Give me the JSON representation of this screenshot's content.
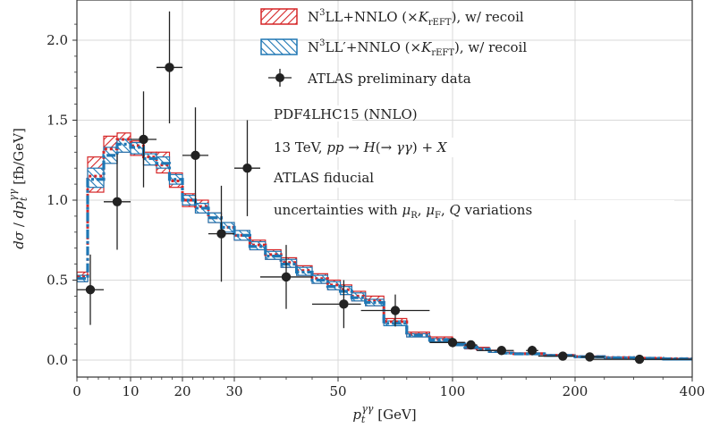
{
  "chart_data": {
    "type": "line",
    "xlabel": "p_t^γγ [GeV]",
    "ylabel": "dσ/dp_t^γγ [fb/GeV]",
    "x_scale": "piecewise-linear (0–50: 2 per GeV unit segment, 50–400 compressed)",
    "x_ticks": [
      0,
      10,
      20,
      30,
      50,
      100,
      200,
      400
    ],
    "x_tick_labels": [
      "0",
      "10",
      "20",
      "30",
      "50",
      "100",
      "200",
      "400"
    ],
    "y_ticks": [
      0.0,
      0.5,
      1.0,
      1.5,
      2.0
    ],
    "y_tick_labels": [
      "0.0",
      "0.5",
      "1.0",
      "1.5",
      "2.0"
    ],
    "ylim": [
      -0.08,
      2.22
    ],
    "grid": true,
    "legend_placement": "top-right",
    "legend": [
      {
        "label": "N³LL+NNLO (×K_rEFT), w/ recoil",
        "color": "#d62728",
        "style": "hatched band"
      },
      {
        "label": "N³LL′+NNLO (×K_rEFT), w/ recoil",
        "color": "#1f77b4",
        "style": "hatched band"
      },
      {
        "label": "ATLAS preliminary data",
        "color": "#222222",
        "style": "points with error bars"
      }
    ],
    "annotations": [
      "PDF4LHC15 (NNLO)",
      "13 TeV, pp → H(→ γγ) + X",
      "ATLAS fiducial",
      "uncertainties with μ_R, μ_F, Q variations"
    ],
    "bin_edges": [
      0,
      2,
      5,
      7.5,
      10,
      12.5,
      15,
      17.5,
      20,
      22.5,
      25,
      27.5,
      30,
      33,
      36,
      39,
      42,
      45,
      48,
      51,
      56,
      62,
      70,
      80,
      90,
      100,
      110,
      120,
      130,
      140,
      150,
      175,
      200,
      250,
      300,
      350,
      400
    ],
    "series": [
      {
        "name": "N³LL+NNLO (×K_rEFT), w/ recoil",
        "color": "#d62728",
        "central": [
          0.52,
          1.15,
          1.32,
          1.38,
          1.34,
          1.27,
          1.22,
          1.12,
          1.0,
          0.96,
          0.89,
          0.83,
          0.78,
          0.72,
          0.66,
          0.61,
          0.56,
          0.51,
          0.47,
          0.44,
          0.4,
          0.37,
          0.24,
          0.16,
          0.13,
          0.1,
          0.08,
          0.07,
          0.055,
          0.045,
          0.04,
          0.03,
          0.022,
          0.016,
          0.012,
          0.009
        ],
        "low": [
          0.49,
          1.05,
          1.23,
          1.3,
          1.28,
          1.22,
          1.17,
          1.08,
          0.96,
          0.92,
          0.86,
          0.8,
          0.75,
          0.69,
          0.63,
          0.58,
          0.53,
          0.48,
          0.44,
          0.41,
          0.37,
          0.34,
          0.22,
          0.145,
          0.115,
          0.09,
          0.07,
          0.06,
          0.048,
          0.04,
          0.035,
          0.026,
          0.018,
          0.013,
          0.01,
          0.007
        ],
        "high": [
          0.55,
          1.27,
          1.4,
          1.42,
          1.37,
          1.3,
          1.3,
          1.17,
          1.04,
          1.0,
          0.92,
          0.86,
          0.81,
          0.75,
          0.69,
          0.64,
          0.59,
          0.54,
          0.5,
          0.47,
          0.43,
          0.4,
          0.26,
          0.175,
          0.145,
          0.11,
          0.09,
          0.08,
          0.062,
          0.05,
          0.045,
          0.034,
          0.026,
          0.019,
          0.014,
          0.011
        ]
      },
      {
        "name": "N³LL′+NNLO (×K_rEFT), w/ recoil",
        "color": "#1f77b4",
        "central": [
          0.51,
          1.13,
          1.28,
          1.35,
          1.33,
          1.26,
          1.23,
          1.13,
          1.0,
          0.95,
          0.89,
          0.83,
          0.78,
          0.71,
          0.65,
          0.6,
          0.55,
          0.5,
          0.46,
          0.43,
          0.39,
          0.36,
          0.23,
          0.155,
          0.125,
          0.1,
          0.08,
          0.068,
          0.054,
          0.044,
          0.039,
          0.029,
          0.021,
          0.015,
          0.011,
          0.008
        ],
        "low": [
          0.49,
          1.08,
          1.23,
          1.3,
          1.29,
          1.22,
          1.2,
          1.1,
          0.97,
          0.92,
          0.86,
          0.8,
          0.75,
          0.69,
          0.63,
          0.58,
          0.53,
          0.48,
          0.44,
          0.41,
          0.37,
          0.34,
          0.215,
          0.145,
          0.115,
          0.09,
          0.072,
          0.06,
          0.048,
          0.04,
          0.035,
          0.026,
          0.018,
          0.013,
          0.01,
          0.007
        ],
        "high": [
          0.53,
          1.2,
          1.33,
          1.38,
          1.36,
          1.29,
          1.27,
          1.16,
          1.03,
          0.98,
          0.92,
          0.86,
          0.81,
          0.74,
          0.68,
          0.63,
          0.58,
          0.53,
          0.49,
          0.46,
          0.42,
          0.38,
          0.245,
          0.165,
          0.135,
          0.11,
          0.088,
          0.075,
          0.06,
          0.048,
          0.043,
          0.032,
          0.024,
          0.017,
          0.012,
          0.009
        ]
      }
    ],
    "data_points": {
      "name": "ATLAS preliminary data",
      "x": [
        2.5,
        7.5,
        12.5,
        17.5,
        22.5,
        27.5,
        32.5,
        40,
        52.5,
        75,
        100,
        115,
        140,
        165,
        190,
        225,
        310
      ],
      "x_err_lo": [
        2.5,
        2.5,
        2.5,
        2.5,
        2.5,
        2.5,
        2.5,
        5,
        7.5,
        15,
        10,
        5,
        20,
        5,
        20,
        15,
        90
      ],
      "x_err_hi": [
        2.5,
        2.5,
        2.5,
        2.5,
        2.5,
        2.5,
        2.5,
        5,
        7.5,
        15,
        10,
        5,
        10,
        5,
        10,
        25,
        90
      ],
      "y": [
        0.44,
        0.99,
        1.38,
        1.83,
        1.28,
        0.79,
        1.2,
        0.52,
        0.35,
        0.31,
        0.11,
        0.095,
        0.06,
        0.06,
        0.025,
        0.02,
        0.005
      ],
      "y_err": [
        0.22,
        0.3,
        0.3,
        0.35,
        0.3,
        0.3,
        0.3,
        0.2,
        0.15,
        0.1,
        0.03,
        0.02,
        0.02,
        0.03,
        0.01,
        0.01,
        0.005
      ]
    }
  }
}
